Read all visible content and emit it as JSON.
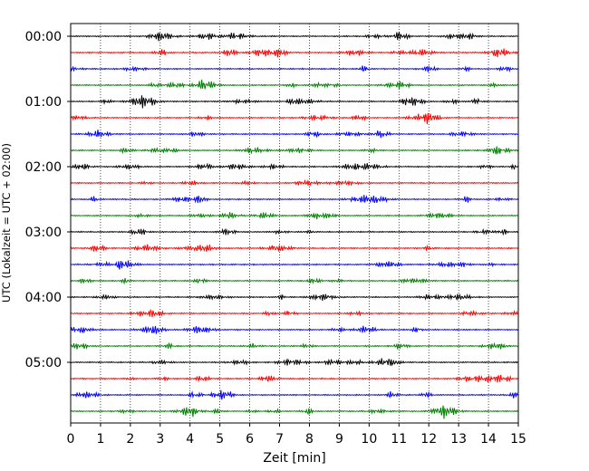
{
  "chart_data": {
    "type": "line",
    "title": "",
    "xlabel": "Zeit  [min]",
    "ylabel": "UTC (Lokalzeit = UTC + 02:00)",
    "xlim": [
      0,
      15
    ],
    "x_ticks": [
      0,
      1,
      2,
      3,
      4,
      5,
      6,
      7,
      8,
      9,
      10,
      11,
      12,
      13,
      14,
      15
    ],
    "x_tick_labels": [
      "0",
      "1",
      "2",
      "3",
      "4",
      "5",
      "6",
      "7",
      "8",
      "9",
      "10",
      "11",
      "12",
      "13",
      "14",
      "15"
    ],
    "y_tick_labels": [
      "00:00",
      "01:00",
      "02:00",
      "03:00",
      "04:00",
      "05:00"
    ],
    "y_tick_trace_index": [
      0,
      4,
      8,
      12,
      16,
      20
    ],
    "trace_count": 24,
    "trace_minutes": 15,
    "trace_colors": [
      "#000000",
      "#ff0000",
      "#0000ff",
      "#008000"
    ],
    "grid": {
      "x": true,
      "style": "dotted"
    },
    "legend": "none",
    "series_note_values": "seismogram traces, 24 rows of 15 minutes each, colors cycle black/red/blue/green"
  }
}
